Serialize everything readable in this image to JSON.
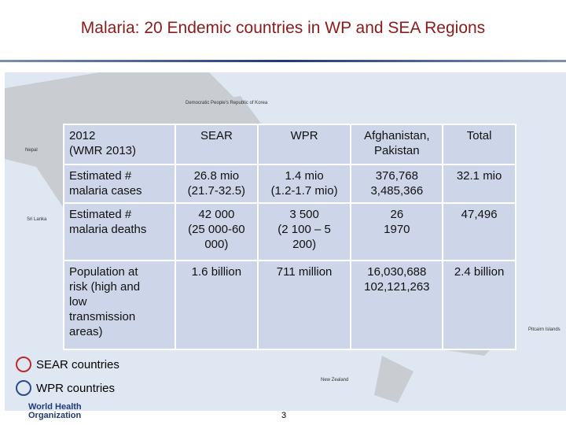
{
  "title": "Malaria: 20 Endemic countries in WP and SEA Regions",
  "map_labels": [
    "Democratic People's Republic of Korea",
    "Nepal",
    "Sri Lanka",
    "New Zealand",
    "Pitcairn Islands"
  ],
  "table": {
    "header": [
      "2012\n(WMR 2013)",
      "SEAR",
      "WPR",
      "Afghanistan,\nPakistan",
      "Total"
    ],
    "rows": [
      [
        "Estimated #\nmalaria cases",
        "26.8 mio\n(21.7-32.5)",
        "1.4 mio\n(1.2-1.7 mio)",
        "376,768\n3,485,366",
        "32.1 mio"
      ],
      [
        "Estimated #\nmalaria deaths",
        "42 000\n(25 000-60\n000)",
        "3 500\n(2 100 – 5\n200)",
        "26\n1970",
        "47,496"
      ],
      [
        "Population at\nrisk (high and\nlow\ntransmission\nareas)",
        "1.6 billion",
        "711 million",
        "16,030,688\n102,121,263",
        "2.4 billion"
      ]
    ]
  },
  "legend": [
    {
      "label": "SEAR countries",
      "color": "#c0282d"
    },
    {
      "label": "WPR countries",
      "color": "#2a4b8d"
    }
  ],
  "logo": [
    "World Health",
    "Organization"
  ],
  "page_number": "3"
}
